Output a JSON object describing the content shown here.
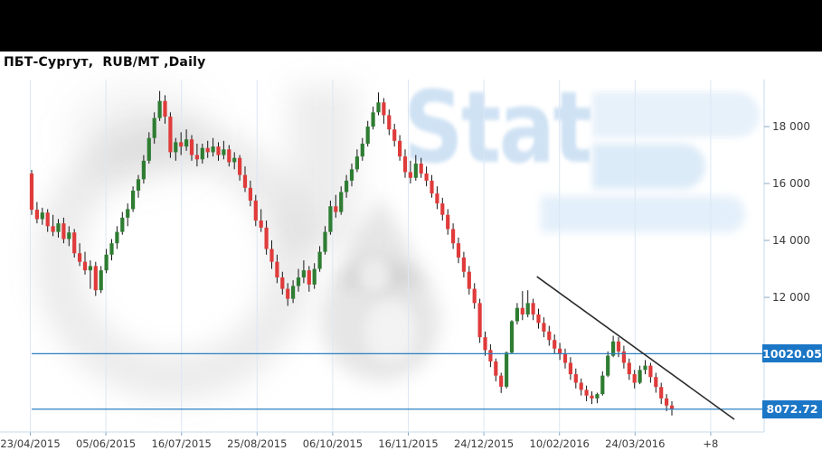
{
  "window": {
    "topbar_color": "#000000"
  },
  "header": {
    "title": "ПБТ-Сургут,  RUB/MT ,Daily"
  },
  "watermark": {
    "word_light": "Stat",
    "accent_text_color": "#cfe2f4"
  },
  "chart_data": {
    "type": "candlestick",
    "title": "ПБТ-Сургут,  RUB/MT ,Daily",
    "symbol": "ПБТ-Сургут",
    "unit": "RUB/MT",
    "timeframe": "Daily",
    "legend_position": "none",
    "grid": "vertical-only",
    "x_tick_labels": [
      "23/04/2015",
      "05/06/2015",
      "16/07/2015",
      "25/08/2015",
      "06/10/2015",
      "16/11/2015",
      "24/12/2015",
      "10/02/2016",
      "24/03/2016",
      "+8"
    ],
    "y_tick_values": [
      18000,
      16000,
      14000,
      12000
    ],
    "y_tick_labels": [
      "18 000",
      "16 000",
      "14 000",
      "12 000"
    ],
    "y_range": [
      7270,
      19590
    ],
    "candles_ohlc": [
      [
        16350,
        16480,
        14900,
        15080
      ],
      [
        15080,
        15350,
        14600,
        14750
      ],
      [
        14750,
        15150,
        14550,
        14980
      ],
      [
        14980,
        15100,
        14300,
        14500
      ],
      [
        14500,
        14900,
        14150,
        14300
      ],
      [
        14300,
        14750,
        14100,
        14600
      ],
      [
        14600,
        14800,
        13900,
        14050
      ],
      [
        14050,
        14500,
        13800,
        14280
      ],
      [
        14280,
        14400,
        13400,
        13550
      ],
      [
        13550,
        13900,
        13100,
        13250
      ],
      [
        13250,
        13600,
        12800,
        12950
      ],
      [
        12950,
        13300,
        12300,
        13100
      ],
      [
        13100,
        13250,
        12050,
        12250
      ],
      [
        12250,
        13100,
        12150,
        12950
      ],
      [
        12950,
        13700,
        12850,
        13500
      ],
      [
        13500,
        14050,
        13300,
        13900
      ],
      [
        13900,
        14500,
        13700,
        14300
      ],
      [
        14300,
        15000,
        14200,
        14800
      ],
      [
        14800,
        15300,
        14500,
        15100
      ],
      [
        15100,
        15900,
        15000,
        15750
      ],
      [
        15750,
        16300,
        15500,
        16150
      ],
      [
        16150,
        17000,
        16000,
        16800
      ],
      [
        16800,
        17800,
        16700,
        17600
      ],
      [
        17600,
        18500,
        17400,
        18300
      ],
      [
        18300,
        19250,
        18200,
        18900
      ],
      [
        18900,
        19100,
        18100,
        18350
      ],
      [
        18350,
        18500,
        16900,
        17100
      ],
      [
        17100,
        17600,
        16800,
        17450
      ],
      [
        17450,
        17800,
        17000,
        17300
      ],
      [
        17300,
        17900,
        17150,
        17550
      ],
      [
        17550,
        17700,
        16800,
        17000
      ],
      [
        17000,
        17400,
        16600,
        16850
      ],
      [
        16850,
        17400,
        16700,
        17250
      ],
      [
        17250,
        17500,
        16900,
        17100
      ],
      [
        17100,
        17600,
        16950,
        17300
      ],
      [
        17300,
        17450,
        16800,
        17000
      ],
      [
        17000,
        17500,
        16850,
        17200
      ],
      [
        17200,
        17350,
        16600,
        16750
      ],
      [
        16750,
        17100,
        16500,
        16900
      ],
      [
        16900,
        17000,
        16100,
        16300
      ],
      [
        16300,
        16600,
        15700,
        15850
      ],
      [
        15850,
        16100,
        15200,
        15400
      ],
      [
        15400,
        15600,
        14500,
        14700
      ],
      [
        14700,
        15100,
        14300,
        14450
      ],
      [
        14450,
        14700,
        13500,
        13700
      ],
      [
        13700,
        14000,
        13000,
        13250
      ],
      [
        13250,
        13500,
        12500,
        12700
      ],
      [
        12700,
        12900,
        12100,
        12300
      ],
      [
        12300,
        12500,
        11700,
        11950
      ],
      [
        11950,
        12600,
        11800,
        12400
      ],
      [
        12400,
        13000,
        12200,
        12700
      ],
      [
        12700,
        13300,
        12500,
        12950
      ],
      [
        12950,
        13100,
        12200,
        12450
      ],
      [
        12450,
        13200,
        12300,
        13000
      ],
      [
        13000,
        13800,
        12900,
        13600
      ],
      [
        13600,
        14500,
        13500,
        14300
      ],
      [
        14300,
        15400,
        14200,
        15200
      ],
      [
        15200,
        15600,
        14800,
        15000
      ],
      [
        15000,
        15900,
        14900,
        15700
      ],
      [
        15700,
        16300,
        15500,
        16100
      ],
      [
        16100,
        16700,
        15900,
        16500
      ],
      [
        16500,
        17200,
        16400,
        16950
      ],
      [
        16950,
        17600,
        16800,
        17400
      ],
      [
        17400,
        18200,
        17300,
        18000
      ],
      [
        18000,
        18700,
        17900,
        18500
      ],
      [
        18500,
        19200,
        18400,
        18850
      ],
      [
        18850,
        19000,
        18100,
        18400
      ],
      [
        18400,
        18600,
        17700,
        17900
      ],
      [
        17900,
        18100,
        17300,
        17500
      ],
      [
        17500,
        17700,
        16800,
        16950
      ],
      [
        16950,
        17200,
        16200,
        16400
      ],
      [
        16400,
        16800,
        16000,
        16200
      ],
      [
        16200,
        17000,
        16100,
        16700
      ],
      [
        16700,
        16900,
        16200,
        16350
      ],
      [
        16350,
        16600,
        15900,
        16100
      ],
      [
        16100,
        16300,
        15500,
        15650
      ],
      [
        15650,
        15900,
        15100,
        15300
      ],
      [
        15300,
        15500,
        14700,
        14900
      ],
      [
        14900,
        15100,
        14200,
        14400
      ],
      [
        14400,
        14600,
        13700,
        13900
      ],
      [
        13900,
        14100,
        13200,
        13400
      ],
      [
        13400,
        13600,
        12700,
        12900
      ],
      [
        12900,
        13100,
        12100,
        12300
      ],
      [
        12300,
        12500,
        11600,
        11800
      ],
      [
        11800,
        11950,
        10400,
        10600
      ],
      [
        10600,
        10800,
        9950,
        10150
      ],
      [
        10150,
        10350,
        9550,
        9750
      ],
      [
        9750,
        9850,
        9050,
        9250
      ],
      [
        9250,
        9350,
        8640,
        8860
      ],
      [
        8860,
        10100,
        8800,
        10060
      ],
      [
        10060,
        11200,
        10000,
        11160
      ],
      [
        11160,
        11800,
        11050,
        11630
      ],
      [
        11630,
        12220,
        11200,
        11400
      ],
      [
        11400,
        12250,
        11300,
        11800
      ],
      [
        11800,
        11950,
        11200,
        11400
      ],
      [
        11400,
        11600,
        10900,
        11100
      ],
      [
        11100,
        11300,
        10600,
        10800
      ],
      [
        10800,
        11000,
        10300,
        10500
      ],
      [
        10500,
        10700,
        10000,
        10200
      ],
      [
        10200,
        10400,
        9800,
        10000
      ],
      [
        10000,
        10200,
        9500,
        9700
      ],
      [
        9700,
        9900,
        9100,
        9300
      ],
      [
        9300,
        9500,
        8800,
        9000
      ],
      [
        9000,
        9150,
        8550,
        8750
      ],
      [
        8750,
        8900,
        8350,
        8550
      ],
      [
        8550,
        8700,
        8250,
        8450
      ],
      [
        8450,
        8650,
        8280,
        8600
      ],
      [
        8600,
        9400,
        8550,
        9250
      ],
      [
        9250,
        10100,
        9200,
        9950
      ],
      [
        9950,
        10650,
        9900,
        10450
      ],
      [
        10450,
        10600,
        9900,
        10100
      ],
      [
        10100,
        10300,
        9500,
        9700
      ],
      [
        9700,
        9850,
        9100,
        9300
      ],
      [
        9300,
        9450,
        8800,
        9000
      ],
      [
        9000,
        9600,
        8950,
        9450
      ],
      [
        9450,
        9800,
        9300,
        9600
      ],
      [
        9600,
        9700,
        9000,
        9200
      ],
      [
        9200,
        9350,
        8650,
        8850
      ],
      [
        8850,
        9000,
        8250,
        8450
      ],
      [
        8450,
        8600,
        8000,
        8200
      ],
      [
        8200,
        8350,
        7850,
        8072.72
      ]
    ],
    "price_lines": [
      {
        "label": "10020.05",
        "value": 10020.05
      },
      {
        "label": "8072.72",
        "value": 8072.72
      }
    ],
    "trend_line": {
      "from_bar": 94.7,
      "from_price": 12730,
      "to_bar": 131.7,
      "to_price": 7714
    },
    "colors": {
      "up": "#2e7d32",
      "down": "#e03b3b",
      "wick": "#151515",
      "grid": "#dbe7f5",
      "axis": "#c6dbee",
      "tick": "#8aa7c4",
      "price_line": "#2b7fc1",
      "price_tag_bg": "#1b76c6",
      "price_tag_text": "#ffffff",
      "trend": "#2b2b2b",
      "tick_text": "#3a3a3a"
    }
  }
}
